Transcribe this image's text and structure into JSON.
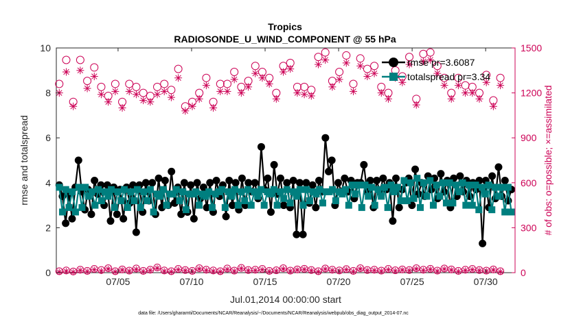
{
  "chart_data": {
    "type": "line",
    "title": "Tropics",
    "subtitle": "RADIOSONDE_U_WIND_COMPONENT @ 55 hPa",
    "xlabel": "Jul.01,2014 00:00:00 start",
    "ylabel": "rmse and totalspread",
    "ylabel_right": "# of obs: o=possible; ×=assimilated",
    "x_ticks": [
      {
        "day": 5,
        "label": "07/05"
      },
      {
        "day": 10,
        "label": "07/10"
      },
      {
        "day": 15,
        "label": "07/15"
      },
      {
        "day": 20,
        "label": "07/20"
      },
      {
        "day": 25,
        "label": "07/25"
      },
      {
        "day": 30,
        "label": "07/30"
      }
    ],
    "xlim": [
      0.8,
      32.0
    ],
    "ylim": [
      0,
      10
    ],
    "y_ticks": [
      0,
      2,
      4,
      6,
      8,
      10
    ],
    "ylim_right": [
      0,
      1500
    ],
    "y_ticks_right": [
      0,
      300,
      600,
      900,
      1200,
      1500
    ],
    "footnote": "data file: /Users/gharamti/Documents/NCAR/Reanalysis/~/Documents/NCAR/Reanalysis/webpub/obs_diag_output_2014-07.nc",
    "colors": {
      "rmse": "#000000",
      "totalspread": "#007f7f",
      "obs": "#cc0055"
    },
    "series": [
      {
        "name": "rmse pr=3.6087",
        "values": [
          3.9,
          3.4,
          2.2,
          3.5,
          2.4,
          3.8,
          5.0,
          3.6,
          2.8,
          3.7,
          2.6,
          4.1,
          3.5,
          3.9,
          3.0,
          3.9,
          2.3,
          3.8,
          2.6,
          3.7,
          2.4,
          3.8,
          3.1,
          3.9,
          1.8,
          3.9,
          2.7,
          4.0,
          3.2,
          4.0,
          2.6,
          4.2,
          2.9,
          4.1,
          3.0,
          4.5,
          3.1,
          3.8,
          2.6,
          4.0,
          2.7,
          3.9,
          2.4,
          4.0,
          3.3,
          3.8,
          2.9,
          4.0,
          2.7,
          4.1,
          3.4,
          3.9,
          2.5,
          4.1,
          3.0,
          4.0,
          2.8,
          4.2,
          3.0,
          4.0,
          3.6,
          4.0,
          3.3,
          5.6,
          3.7,
          4.2,
          2.7,
          4.8,
          3.5,
          4.2,
          3.0,
          4.0,
          2.9,
          4.1,
          1.7,
          4.0,
          1.7,
          4.0,
          3.1,
          3.9,
          2.9,
          4.1,
          3.6,
          6.0,
          4.5,
          5.0,
          3.0,
          4.0,
          3.6,
          4.2,
          3.6,
          4.1,
          3.3,
          4.0,
          4.0,
          4.8,
          3.6,
          4.1,
          2.9,
          4.1,
          3.6,
          4.2,
          3.7,
          4.0,
          2.3,
          4.2,
          2.9,
          3.7,
          4.0,
          4.2,
          3.0,
          4.6,
          3.5,
          4.0,
          3.4,
          4.3,
          3.7,
          4.2,
          3.3,
          4.4,
          3.6,
          4.1,
          2.9,
          4.2,
          3.4,
          4.3,
          3.6,
          4.1,
          3.4,
          4.0,
          3.7,
          4.1,
          1.3,
          4.1,
          2.9,
          4.3,
          3.3,
          4.7,
          3.4,
          4.1,
          3.2,
          3.7
        ],
        "marker": "filled-circle"
      },
      {
        "name": "totalspread pr=3.34",
        "values": [
          3.8,
          2.7,
          3.7,
          2.9,
          3.6,
          2.7,
          3.8,
          2.9,
          3.8,
          3.4,
          3.6,
          3.0,
          3.7,
          3.2,
          3.6,
          3.4,
          3.7,
          2.9,
          3.6,
          3.2,
          3.7,
          2.9,
          3.6,
          3.2,
          3.7,
          2.9,
          3.6,
          3.2,
          3.7,
          2.7,
          3.5,
          3.4,
          3.7,
          3.0,
          3.5,
          3.5,
          3.7,
          3.2,
          3.6,
          2.8,
          3.5,
          3.5,
          3.6,
          3.0,
          3.5,
          3.4,
          3.6,
          2.9,
          3.5,
          3.6,
          3.7,
          2.9,
          3.6,
          3.4,
          3.7,
          3.0,
          3.6,
          3.2,
          3.7,
          3.0,
          3.6,
          3.4,
          3.7,
          3.0,
          3.6,
          3.5,
          3.7,
          3.0,
          3.6,
          3.3,
          3.7,
          3.1,
          3.6,
          3.4,
          3.7,
          3.0,
          3.7,
          3.2,
          3.6,
          3.5,
          3.7,
          3.1,
          3.6,
          3.6,
          3.7,
          3.2,
          3.6,
          3.5,
          3.7,
          3.0,
          3.9,
          3.5,
          3.9,
          2.9,
          3.9,
          3.4,
          3.8,
          3.0,
          3.7,
          3.4,
          3.8,
          2.9,
          3.9,
          3.6,
          3.8,
          3.2,
          4.1,
          3.2,
          4.0,
          3.3,
          4.2,
          2.9,
          4.0,
          3.4,
          4.1,
          3.0,
          3.9,
          3.4,
          4.0,
          3.1,
          4.0,
          3.1,
          3.9,
          3.6,
          4.0,
          3.0,
          3.9,
          3.0,
          3.9,
          2.8,
          3.8,
          3.5,
          3.9,
          2.8,
          3.8,
          3.4,
          3.8,
          2.7,
          3.8,
          2.7
        ],
        "marker": "filled-square"
      }
    ],
    "obs_possible": [
      1260,
      1420,
      1140,
      1420,
      1280,
      1370,
      1240,
      1180,
      1260,
      1140,
      1260,
      1240,
      1200,
      1180,
      1240,
      1260,
      1220,
      1360,
      1110,
      1140,
      1200,
      1300,
      1140,
      1260,
      1260,
      1340,
      1240,
      1280,
      1380,
      1340,
      1300,
      1200,
      1380,
      1400,
      1240,
      1240,
      1220,
      1440,
      1470,
      1280,
      1340,
      1450,
      1260,
      1430,
      1360,
      1380,
      1240,
      1200,
      1350,
      1310,
      1440,
      1160,
      1460,
      1470,
      1380,
      1300,
      1200,
      1300,
      1250,
      1240,
      1200,
      1320,
      1150,
      1300
    ],
    "obs_assimilated": [
      1200,
      1340,
      1110,
      1350,
      1230,
      1310,
      1190,
      1140,
      1210,
      1100,
      1210,
      1190,
      1150,
      1140,
      1190,
      1210,
      1170,
      1300,
      1080,
      1110,
      1160,
      1250,
      1100,
      1210,
      1210,
      1290,
      1200,
      1240,
      1330,
      1300,
      1260,
      1160,
      1340,
      1360,
      1200,
      1190,
      1180,
      1390,
      1420,
      1240,
      1290,
      1400,
      1210,
      1380,
      1310,
      1330,
      1200,
      1160,
      1300,
      1270,
      1390,
      1120,
      1410,
      1420,
      1330,
      1250,
      1160,
      1250,
      1200,
      1200,
      1160,
      1270,
      1110,
      1250
    ],
    "obs_rejected_possible": [
      10,
      15,
      8,
      20,
      12,
      25,
      18,
      30,
      10,
      22,
      14,
      28,
      12,
      20,
      35,
      15,
      10,
      25,
      18,
      12,
      30,
      20,
      15,
      10,
      28,
      14,
      32,
      18,
      20,
      25,
      12,
      16,
      30,
      14,
      22,
      26,
      18,
      10,
      28,
      20,
      15,
      24,
      12,
      30,
      18,
      20,
      14,
      25,
      16,
      22,
      18,
      30,
      20,
      26,
      14,
      28,
      22,
      12,
      20,
      25,
      18,
      14,
      22,
      10
    ],
    "obs_rejected_assimilated": [
      5,
      10,
      4,
      15,
      8,
      20,
      12,
      25,
      6,
      18,
      10,
      22,
      8,
      15,
      30,
      10,
      6,
      20,
      14,
      8,
      25,
      15,
      10,
      6,
      22,
      10,
      28,
      14,
      15,
      20,
      8,
      12,
      25,
      10,
      18,
      22,
      14,
      6,
      24,
      15,
      10,
      20,
      8,
      25,
      14,
      15,
      10,
      20,
      12,
      18,
      14,
      25,
      15,
      22,
      10,
      24,
      18,
      8,
      15,
      20,
      14,
      10,
      18,
      6
    ]
  }
}
